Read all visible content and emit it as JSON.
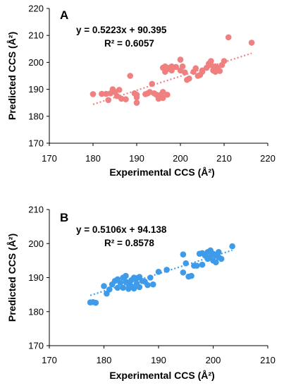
{
  "chart_data": [
    {
      "type": "scatter",
      "panel_label": "A",
      "xlabel": "Experimental CCS (Å²)",
      "ylabel": "Predicted CCS (Å²)",
      "xlim": [
        170,
        220
      ],
      "ylim": [
        170,
        220
      ],
      "xticks": [
        170,
        180,
        190,
        200,
        210,
        220
      ],
      "yticks": [
        170,
        180,
        190,
        200,
        210,
        220
      ],
      "grid": false,
      "color": "#F08080",
      "equation": "y = 0.5223x + 90.395",
      "r_squared": "R² = 0.6057",
      "trendline": {
        "slope": 0.5223,
        "intercept": 90.395,
        "x_range": [
          180,
          216.3
        ],
        "style": "dotted"
      },
      "points": [
        [
          180.0,
          188.2
        ],
        [
          182.0,
          188.3
        ],
        [
          183.0,
          188.3
        ],
        [
          183.5,
          186.0
        ],
        [
          184.0,
          188.5
        ],
        [
          184.5,
          190.0
        ],
        [
          185.0,
          189.0
        ],
        [
          185.5,
          187.5
        ],
        [
          186.0,
          189.8
        ],
        [
          186.5,
          186.5
        ],
        [
          187.5,
          186.3
        ],
        [
          188.5,
          195.0
        ],
        [
          189.5,
          188.5
        ],
        [
          190.0,
          188.0
        ],
        [
          190.0,
          185.0
        ],
        [
          190.0,
          187.0
        ],
        [
          192.0,
          188.2
        ],
        [
          192.5,
          188.5
        ],
        [
          193.0,
          189.0
        ],
        [
          193.5,
          192.0
        ],
        [
          194.0,
          188.5
        ],
        [
          194.5,
          188.0
        ],
        [
          195.0,
          187.5
        ],
        [
          195.0,
          186.5
        ],
        [
          195.5,
          188.0
        ],
        [
          195.5,
          187.0
        ],
        [
          196.0,
          186.8
        ],
        [
          196.0,
          189.0
        ],
        [
          196.0,
          198.0
        ],
        [
          196.5,
          198.5
        ],
        [
          196.5,
          196.5
        ],
        [
          197.0,
          188.0
        ],
        [
          197.0,
          197.5
        ],
        [
          197.5,
          198.0
        ],
        [
          198.0,
          197.0
        ],
        [
          198.0,
          198.5
        ],
        [
          199.0,
          198.3
        ],
        [
          200.0,
          201.0
        ],
        [
          200.0,
          197.0
        ],
        [
          200.5,
          198.5
        ],
        [
          201.0,
          196.3
        ],
        [
          201.5,
          193.5
        ],
        [
          202.0,
          194.0
        ],
        [
          203.0,
          196.5
        ],
        [
          203.5,
          197.8
        ],
        [
          204.0,
          195.0
        ],
        [
          204.5,
          195.3
        ],
        [
          205.0,
          196.5
        ],
        [
          205.0,
          197.0
        ],
        [
          206.0,
          198.0
        ],
        [
          206.5,
          199.5
        ],
        [
          207.0,
          200.5
        ],
        [
          207.0,
          199.0
        ],
        [
          207.5,
          197.0
        ],
        [
          208.0,
          198.5
        ],
        [
          208.0,
          196.5
        ],
        [
          208.5,
          198.0
        ],
        [
          209.0,
          196.8
        ],
        [
          209.5,
          199.0
        ],
        [
          210.0,
          200.5
        ],
        [
          211.0,
          209.3
        ],
        [
          216.3,
          207.3
        ]
      ]
    },
    {
      "type": "scatter",
      "panel_label": "B",
      "xlabel": "Experimental CCS (Å²)",
      "ylabel": "Predicted CCS (Å²)",
      "xlim": [
        170,
        210
      ],
      "ylim": [
        170,
        210
      ],
      "xticks": [
        170,
        180,
        190,
        200,
        210
      ],
      "yticks": [
        170,
        180,
        190,
        200,
        210
      ],
      "grid": false,
      "color": "#3E9BEA",
      "equation": "y = 0.5106x + 94.138",
      "r_squared": "R² = 0.8578",
      "trendline": {
        "slope": 0.5106,
        "intercept": 94.138,
        "x_range": [
          177.5,
          203.5
        ],
        "style": "dotted"
      },
      "points": [
        [
          177.5,
          182.7
        ],
        [
          178.0,
          182.8
        ],
        [
          178.5,
          182.6
        ],
        [
          180.0,
          187.5
        ],
        [
          180.5,
          185.3
        ],
        [
          181.0,
          186.5
        ],
        [
          181.5,
          188.0
        ],
        [
          182.0,
          189.0
        ],
        [
          182.5,
          187.0
        ],
        [
          182.5,
          189.5
        ],
        [
          183.0,
          188.5
        ],
        [
          183.5,
          190.0
        ],
        [
          183.5,
          187.0
        ],
        [
          184.0,
          188.8
        ],
        [
          184.0,
          190.5
        ],
        [
          184.5,
          186.7
        ],
        [
          184.5,
          188.0
        ],
        [
          185.0,
          189.2
        ],
        [
          185.0,
          187.5
        ],
        [
          185.5,
          190.0
        ],
        [
          185.5,
          186.8
        ],
        [
          186.0,
          189.8
        ],
        [
          186.0,
          188.2
        ],
        [
          186.5,
          190.2
        ],
        [
          186.5,
          187.2
        ],
        [
          187.0,
          189.0
        ],
        [
          187.5,
          188.8
        ],
        [
          188.0,
          187.8
        ],
        [
          188.5,
          190.0
        ],
        [
          189.0,
          188.0
        ],
        [
          190.0,
          191.7
        ],
        [
          191.5,
          192.3
        ],
        [
          194.5,
          191.5
        ],
        [
          194.5,
          196.8
        ],
        [
          195.0,
          194.2
        ],
        [
          195.5,
          190.3
        ],
        [
          196.0,
          190.5
        ],
        [
          196.5,
          193.5
        ],
        [
          197.0,
          193.5
        ],
        [
          197.5,
          197.0
        ],
        [
          198.0,
          193.8
        ],
        [
          198.0,
          197.2
        ],
        [
          198.5,
          196.5
        ],
        [
          199.0,
          197.5
        ],
        [
          199.0,
          195.5
        ],
        [
          199.5,
          198.0
        ],
        [
          199.5,
          196.0
        ],
        [
          200.0,
          197.0
        ],
        [
          200.0,
          195.0
        ],
        [
          200.5,
          196.5
        ],
        [
          200.5,
          194.5
        ],
        [
          201.0,
          197.5
        ],
        [
          201.0,
          196.0
        ],
        [
          201.5,
          195.5
        ],
        [
          203.5,
          199.2
        ]
      ]
    }
  ]
}
